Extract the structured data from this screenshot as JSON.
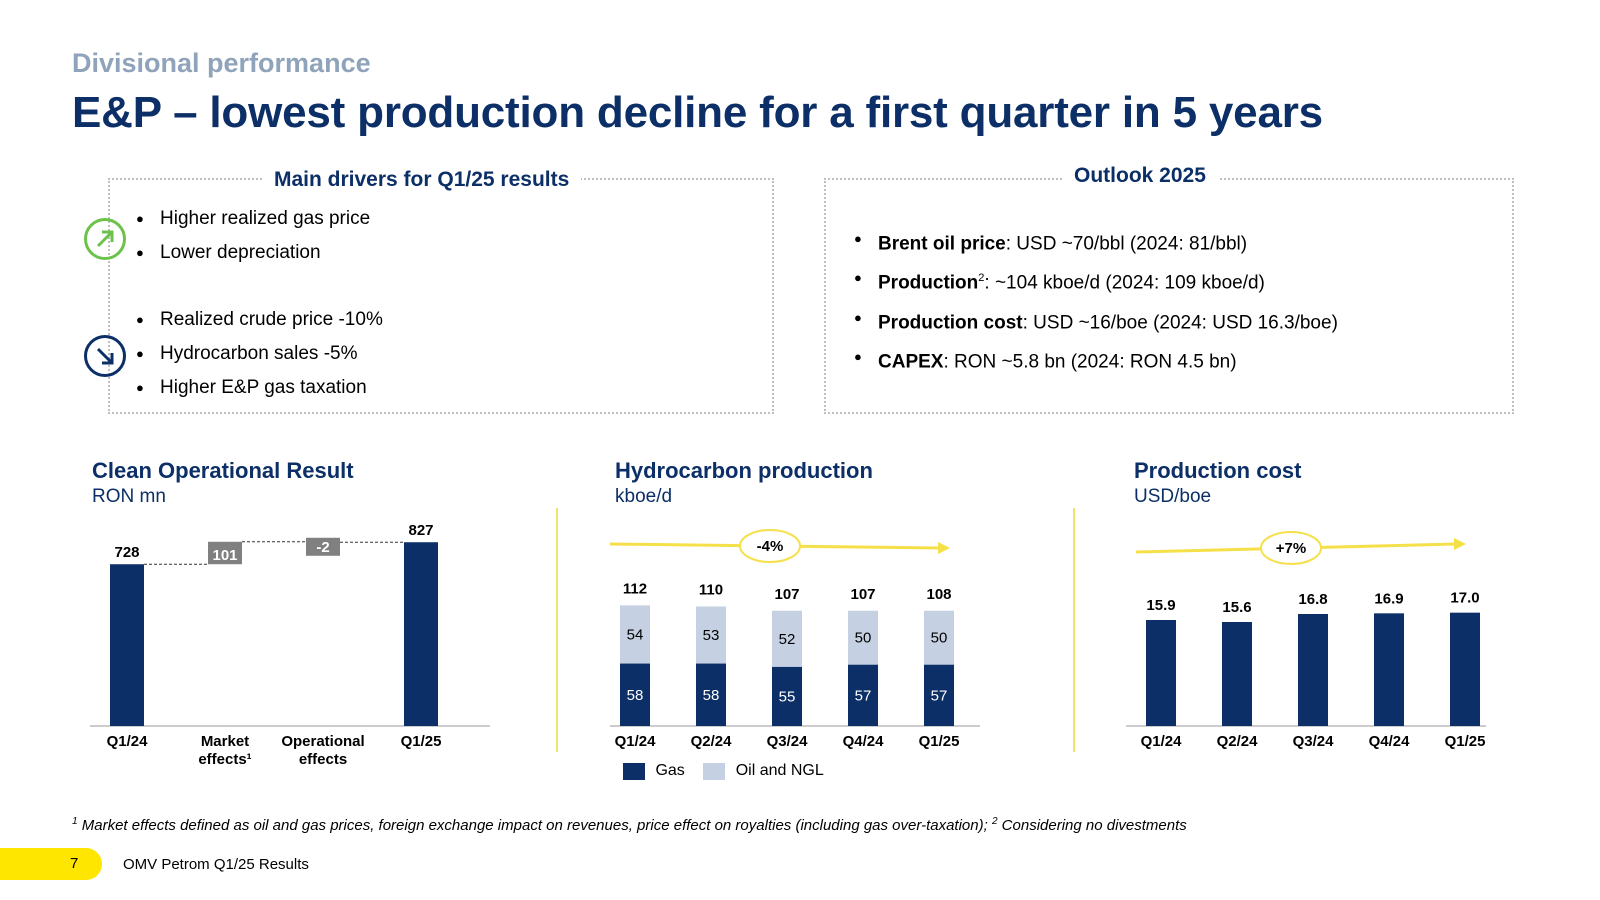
{
  "header": {
    "supertitle": "Divisional performance",
    "title": "E&P – lowest production decline for a first quarter in 5 years"
  },
  "drivers": {
    "heading": "Main drivers for Q1/25 results",
    "positive": [
      "Higher realized gas price",
      "Lower depreciation"
    ],
    "negative": [
      "Realized crude price -10%",
      "Hydrocarbon sales -5%",
      "Higher E&P gas taxation"
    ]
  },
  "outlook": {
    "heading": "Outlook 2025",
    "items": [
      {
        "bold": "Brent oil price",
        "sup": "",
        "rest": ": USD ~70/bbl (2024: 81/bbl)"
      },
      {
        "bold": "Production",
        "sup": "2",
        "rest": ": ~104 kboe/d (2024: 109 kboe/d)"
      },
      {
        "bold": "Production cost",
        "sup": "",
        "rest": ": USD ~16/boe (2024: USD 16.3/boe)"
      },
      {
        "bold": "CAPEX",
        "sup": "",
        "rest": ": RON ~5.8 bn (2024: RON 4.5 bn)"
      }
    ]
  },
  "colors": {
    "navy": "#0b2f66",
    "light": "#c5d0e2",
    "grey": "#808080",
    "arrow": "#f5e04a",
    "up": "#6cc24a"
  },
  "chart_data": [
    {
      "type": "bar",
      "subtype": "waterfall",
      "title": "Clean Operational Result",
      "unit": "RON mn",
      "categories": [
        "Q1/24",
        "Market effects¹",
        "Operational effects",
        "Q1/25"
      ],
      "values": [
        728,
        101,
        -2,
        827
      ],
      "labels": [
        "728",
        "101",
        "-2",
        "827"
      ],
      "ylim": [
        0,
        900
      ]
    },
    {
      "type": "bar",
      "subtype": "stacked",
      "title": "Hydrocarbon production",
      "unit": "kboe/d",
      "categories": [
        "Q1/24",
        "Q2/24",
        "Q3/24",
        "Q4/24",
        "Q1/25"
      ],
      "series": [
        {
          "name": "Gas",
          "values": [
            58,
            58,
            55,
            57,
            57
          ]
        },
        {
          "name": "Oil and NGL",
          "values": [
            54,
            53,
            52,
            50,
            50
          ]
        }
      ],
      "totals": [
        112,
        110,
        107,
        107,
        108
      ],
      "trend_label": "-4%",
      "ylim": [
        0,
        130
      ]
    },
    {
      "type": "bar",
      "title": "Production cost",
      "unit": "USD/boe",
      "categories": [
        "Q1/24",
        "Q2/24",
        "Q3/24",
        "Q4/24",
        "Q1/25"
      ],
      "values": [
        15.9,
        15.6,
        16.8,
        16.9,
        17.0
      ],
      "labels": [
        "15.9",
        "15.6",
        "16.8",
        "16.9",
        "17.0"
      ],
      "trend_label": "+7%",
      "ylim": [
        0,
        21
      ]
    }
  ],
  "footnote": {
    "sup1": "1",
    "text1": " Market effects defined as oil and gas prices, foreign exchange impact on revenues, price effect on royalties (including gas over-taxation); ",
    "sup2": "2",
    "text2": " Considering no divestments"
  },
  "footer": {
    "page": "7",
    "text": "OMV Petrom Q1/25 Results"
  }
}
